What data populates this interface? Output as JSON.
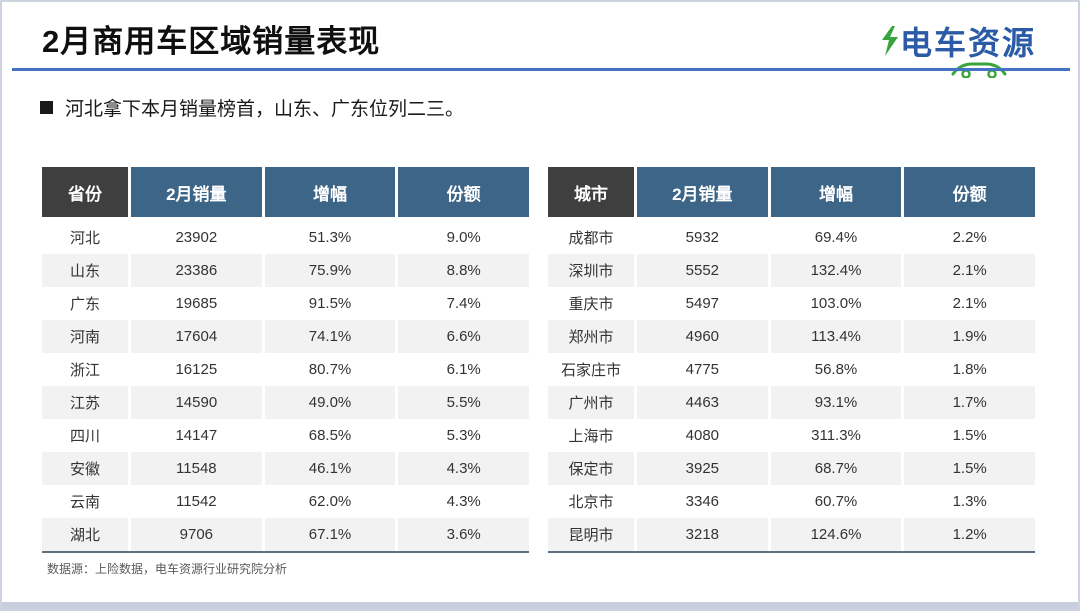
{
  "slide": {
    "title": "2月商用车区域销量表现",
    "bullet": "河北拿下本月销量榜首，山东、广东位列二三。",
    "footer": "数据源：上险数据，电车资源行业研究院分析",
    "logo_text": "电车资源"
  },
  "colors": {
    "title_rule": "#4472c4",
    "header_first_col": "#3f3f3f",
    "header_other_cols": "#3d6587",
    "row_alt": "#f2f2f2",
    "table_bottom_border": "#5f6f7e",
    "logo_blue": "#2b5aa6",
    "logo_green": "#3aa43c",
    "bottom_strip": "#c8cedb"
  },
  "tables": [
    {
      "name": "province-sales-table",
      "headers": [
        "省份",
        "2月销量",
        "增幅",
        "份额"
      ],
      "rows": [
        [
          "河北",
          "23902",
          "51.3%",
          "9.0%"
        ],
        [
          "山东",
          "23386",
          "75.9%",
          "8.8%"
        ],
        [
          "广东",
          "19685",
          "91.5%",
          "7.4%"
        ],
        [
          "河南",
          "17604",
          "74.1%",
          "6.6%"
        ],
        [
          "浙江",
          "16125",
          "80.7%",
          "6.1%"
        ],
        [
          "江苏",
          "14590",
          "49.0%",
          "5.5%"
        ],
        [
          "四川",
          "14147",
          "68.5%",
          "5.3%"
        ],
        [
          "安徽",
          "11548",
          "46.1%",
          "4.3%"
        ],
        [
          "云南",
          "11542",
          "62.0%",
          "4.3%"
        ],
        [
          "湖北",
          "9706",
          "67.1%",
          "3.6%"
        ]
      ]
    },
    {
      "name": "city-sales-table",
      "headers": [
        "城市",
        "2月销量",
        "增幅",
        "份额"
      ],
      "rows": [
        [
          "成都市",
          "5932",
          "69.4%",
          "2.2%"
        ],
        [
          "深圳市",
          "5552",
          "132.4%",
          "2.1%"
        ],
        [
          "重庆市",
          "5497",
          "103.0%",
          "2.1%"
        ],
        [
          "郑州市",
          "4960",
          "113.4%",
          "1.9%"
        ],
        [
          "石家庄市",
          "4775",
          "56.8%",
          "1.8%"
        ],
        [
          "广州市",
          "4463",
          "93.1%",
          "1.7%"
        ],
        [
          "上海市",
          "4080",
          "311.3%",
          "1.5%"
        ],
        [
          "保定市",
          "3925",
          "68.7%",
          "1.5%"
        ],
        [
          "北京市",
          "3346",
          "60.7%",
          "1.3%"
        ],
        [
          "昆明市",
          "3218",
          "124.6%",
          "1.2%"
        ]
      ]
    }
  ]
}
